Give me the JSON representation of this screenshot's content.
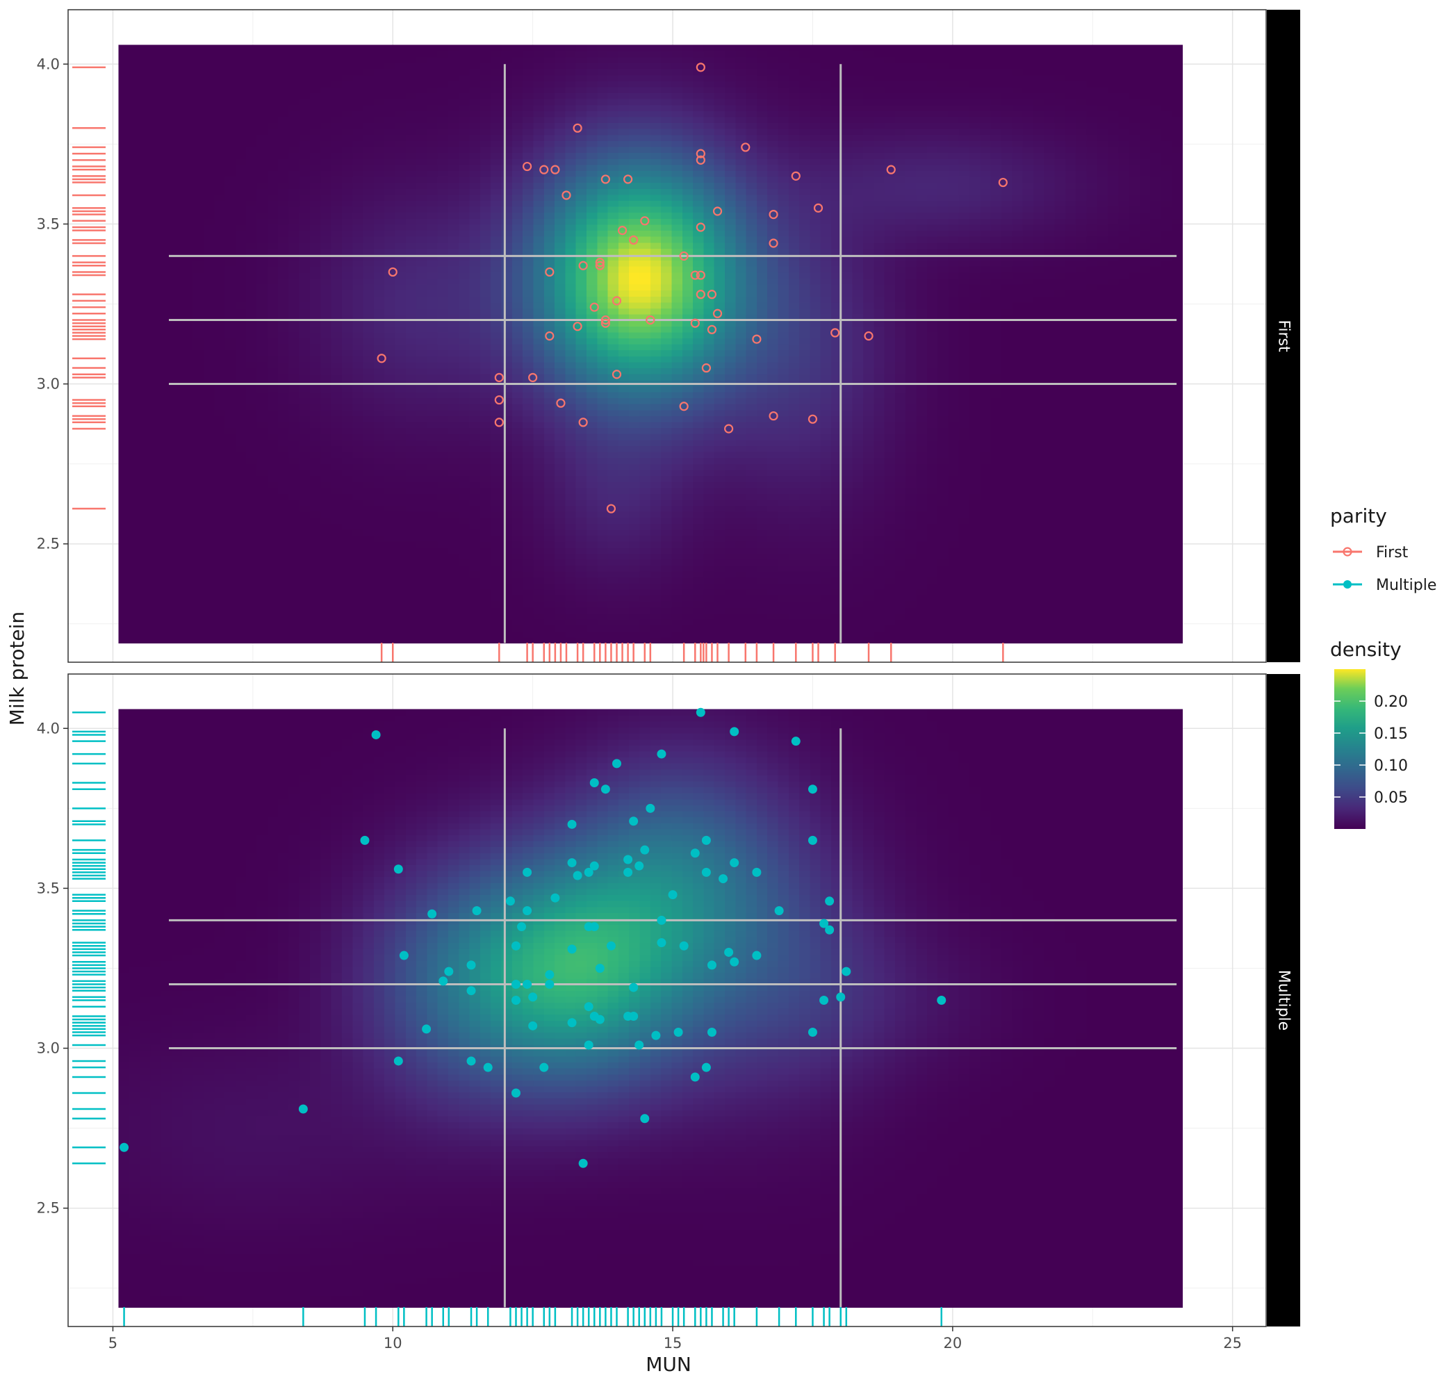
{
  "chart_data": {
    "type": "scatter",
    "subtype": "faceted scatter with 2D density heatmap background, rug marks and reference lines",
    "xlabel": "MUN",
    "ylabel": "Milk protein",
    "xlim": [
      4.2,
      25.6
    ],
    "ylim": [
      2.13,
      4.17
    ],
    "x_ticks": [
      5,
      10,
      15,
      20,
      25
    ],
    "x_tick_labels": [
      "5",
      "10",
      "15",
      "20",
      "25"
    ],
    "y_ticks": [
      2.5,
      3.0,
      3.5,
      4.0
    ],
    "y_tick_labels": [
      "2.5",
      "3.0",
      "3.5",
      "4.0"
    ],
    "density_extent": {
      "x": [
        5.1,
        24.1
      ],
      "y": [
        2.19,
        4.06
      ]
    },
    "reference_lines": {
      "vertical_x": [
        12,
        18
      ],
      "vertical_y_range": [
        2.19,
        4.0
      ],
      "horizontal_y": [
        3.0,
        3.2,
        3.4
      ],
      "horizontal_x_range": [
        6,
        24
      ]
    },
    "grid": true,
    "legends": {
      "parity": {
        "title": "parity",
        "entries": [
          {
            "label": "First",
            "color": "#F8766D",
            "shape": "open circle"
          },
          {
            "label": "Multiple",
            "color": "#00BFC4",
            "shape": "filled circle"
          }
        ]
      },
      "density": {
        "title": "density",
        "colormap": "viridis",
        "range": [
          0,
          0.25
        ],
        "ticks": [
          0.05,
          0.1,
          0.15,
          0.2
        ],
        "tick_labels": [
          "0.05",
          "0.10",
          "0.15",
          "0.20"
        ]
      }
    },
    "facets": [
      {
        "label": "First",
        "color": "#F8766D",
        "shape": "open",
        "density_kernels": [
          {
            "mx": 14.4,
            "my": 3.33,
            "sx": 1.25,
            "sy": 0.25,
            "w": 1.0
          },
          {
            "mx": 10.5,
            "my": 3.25,
            "sx": 1.3,
            "sy": 0.24,
            "w": 0.1
          },
          {
            "mx": 19.8,
            "my": 3.62,
            "sx": 1.7,
            "sy": 0.12,
            "w": 0.09
          },
          {
            "mx": 17.3,
            "my": 3.1,
            "sx": 1.1,
            "sy": 0.3,
            "w": 0.13
          },
          {
            "mx": 14.0,
            "my": 2.65,
            "sx": 0.9,
            "sy": 0.18,
            "w": 0.08
          }
        ],
        "density_max": 0.245,
        "points": [
          [
            15.5,
            3.99
          ],
          [
            13.3,
            3.8
          ],
          [
            15.5,
            3.72
          ],
          [
            15.5,
            3.7
          ],
          [
            16.3,
            3.74
          ],
          [
            12.4,
            3.68
          ],
          [
            12.7,
            3.67
          ],
          [
            12.9,
            3.67
          ],
          [
            13.8,
            3.64
          ],
          [
            14.2,
            3.64
          ],
          [
            17.2,
            3.65
          ],
          [
            18.9,
            3.67
          ],
          [
            20.9,
            3.63
          ],
          [
            13.1,
            3.59
          ],
          [
            15.8,
            3.54
          ],
          [
            17.6,
            3.55
          ],
          [
            16.8,
            3.53
          ],
          [
            14.5,
            3.51
          ],
          [
            15.5,
            3.49
          ],
          [
            14.1,
            3.48
          ],
          [
            14.3,
            3.45
          ],
          [
            16.8,
            3.44
          ],
          [
            15.2,
            3.4
          ],
          [
            13.4,
            3.37
          ],
          [
            13.7,
            3.37
          ],
          [
            13.7,
            3.38
          ],
          [
            12.8,
            3.35
          ],
          [
            15.4,
            3.34
          ],
          [
            15.5,
            3.34
          ],
          [
            10.0,
            3.35
          ],
          [
            15.5,
            3.28
          ],
          [
            15.7,
            3.28
          ],
          [
            14.0,
            3.26
          ],
          [
            13.6,
            3.24
          ],
          [
            15.8,
            3.22
          ],
          [
            13.8,
            3.2
          ],
          [
            13.8,
            3.19
          ],
          [
            14.6,
            3.2
          ],
          [
            15.4,
            3.19
          ],
          [
            13.3,
            3.18
          ],
          [
            15.7,
            3.17
          ],
          [
            12.8,
            3.15
          ],
          [
            16.5,
            3.14
          ],
          [
            17.9,
            3.16
          ],
          [
            18.5,
            3.15
          ],
          [
            9.8,
            3.08
          ],
          [
            15.6,
            3.05
          ],
          [
            14.0,
            3.03
          ],
          [
            11.9,
            3.02
          ],
          [
            12.5,
            3.02
          ],
          [
            11.9,
            2.95
          ],
          [
            13.0,
            2.94
          ],
          [
            15.2,
            2.93
          ],
          [
            16.8,
            2.9
          ],
          [
            17.5,
            2.89
          ],
          [
            11.9,
            2.88
          ],
          [
            13.4,
            2.88
          ],
          [
            16.0,
            2.86
          ],
          [
            13.9,
            2.61
          ]
        ],
        "rug_x": [
          9.8,
          10.0,
          11.9,
          12.4,
          12.5,
          12.7,
          12.8,
          12.9,
          13.0,
          13.1,
          13.3,
          13.4,
          13.6,
          13.7,
          13.8,
          13.9,
          14.0,
          14.1,
          14.2,
          14.3,
          14.5,
          14.6,
          15.2,
          15.4,
          15.5,
          15.55,
          15.6,
          15.7,
          15.8,
          16.0,
          16.3,
          16.5,
          16.8,
          17.2,
          17.5,
          17.6,
          17.9,
          18.5,
          18.9,
          20.9
        ],
        "rug_y": [
          2.61,
          2.86,
          2.88,
          2.89,
          2.9,
          2.93,
          2.94,
          2.95,
          3.02,
          3.03,
          3.05,
          3.08,
          3.14,
          3.15,
          3.16,
          3.17,
          3.18,
          3.19,
          3.2,
          3.22,
          3.24,
          3.26,
          3.28,
          3.34,
          3.35,
          3.37,
          3.38,
          3.4,
          3.44,
          3.45,
          3.48,
          3.49,
          3.51,
          3.53,
          3.54,
          3.55,
          3.59,
          3.63,
          3.64,
          3.65,
          3.67,
          3.68,
          3.7,
          3.72,
          3.74,
          3.8,
          3.99
        ]
      },
      {
        "label": "Multiple",
        "color": "#00BFC4",
        "shape": "filled",
        "density_kernels": [
          {
            "mx": 13.2,
            "my": 3.24,
            "sx": 1.45,
            "sy": 0.24,
            "w": 1.0
          },
          {
            "mx": 15.0,
            "my": 3.55,
            "sx": 1.3,
            "sy": 0.24,
            "w": 0.45
          },
          {
            "mx": 11.0,
            "my": 3.2,
            "sx": 1.2,
            "sy": 0.25,
            "w": 0.3
          },
          {
            "mx": 16.5,
            "my": 3.3,
            "sx": 1.4,
            "sy": 0.3,
            "w": 0.25
          },
          {
            "mx": 17.8,
            "my": 3.15,
            "sx": 1.0,
            "sy": 0.18,
            "w": 0.08
          },
          {
            "mx": 7.5,
            "my": 2.75,
            "sx": 2.0,
            "sy": 0.2,
            "w": 0.05
          },
          {
            "mx": 19.5,
            "my": 3.15,
            "sx": 1.1,
            "sy": 0.15,
            "w": 0.04
          }
        ],
        "density_max": 0.245,
        "density_peak": 0.19,
        "points": [
          [
            15.5,
            4.05
          ],
          [
            16.1,
            3.99
          ],
          [
            9.7,
            3.98
          ],
          [
            17.2,
            3.96
          ],
          [
            14.8,
            3.92
          ],
          [
            14.0,
            3.89
          ],
          [
            13.6,
            3.83
          ],
          [
            13.8,
            3.81
          ],
          [
            17.5,
            3.81
          ],
          [
            14.6,
            3.75
          ],
          [
            14.3,
            3.71
          ],
          [
            13.2,
            3.7
          ],
          [
            9.5,
            3.65
          ],
          [
            15.6,
            3.65
          ],
          [
            17.5,
            3.65
          ],
          [
            14.5,
            3.62
          ],
          [
            15.4,
            3.61
          ],
          [
            13.2,
            3.58
          ],
          [
            14.2,
            3.59
          ],
          [
            16.1,
            3.58
          ],
          [
            14.4,
            3.57
          ],
          [
            13.6,
            3.57
          ],
          [
            13.5,
            3.55
          ],
          [
            10.1,
            3.56
          ],
          [
            12.4,
            3.55
          ],
          [
            14.2,
            3.55
          ],
          [
            15.6,
            3.55
          ],
          [
            16.5,
            3.55
          ],
          [
            13.3,
            3.54
          ],
          [
            15.9,
            3.53
          ],
          [
            15.0,
            3.48
          ],
          [
            12.9,
            3.47
          ],
          [
            12.1,
            3.46
          ],
          [
            17.8,
            3.46
          ],
          [
            10.7,
            3.42
          ],
          [
            11.5,
            3.43
          ],
          [
            12.4,
            3.43
          ],
          [
            16.9,
            3.43
          ],
          [
            14.8,
            3.4
          ],
          [
            17.7,
            3.39
          ],
          [
            13.5,
            3.38
          ],
          [
            13.6,
            3.38
          ],
          [
            12.3,
            3.38
          ],
          [
            17.8,
            3.37
          ],
          [
            14.8,
            3.33
          ],
          [
            15.2,
            3.32
          ],
          [
            13.9,
            3.32
          ],
          [
            12.2,
            3.32
          ],
          [
            13.2,
            3.31
          ],
          [
            16.0,
            3.3
          ],
          [
            10.2,
            3.29
          ],
          [
            16.5,
            3.29
          ],
          [
            16.1,
            3.27
          ],
          [
            11.4,
            3.26
          ],
          [
            15.7,
            3.26
          ],
          [
            13.7,
            3.25
          ],
          [
            11.0,
            3.24
          ],
          [
            18.1,
            3.24
          ],
          [
            12.8,
            3.23
          ],
          [
            10.9,
            3.21
          ],
          [
            12.2,
            3.2
          ],
          [
            12.4,
            3.2
          ],
          [
            12.8,
            3.2
          ],
          [
            14.3,
            3.19
          ],
          [
            11.4,
            3.18
          ],
          [
            12.5,
            3.16
          ],
          [
            12.2,
            3.15
          ],
          [
            17.7,
            3.15
          ],
          [
            18.0,
            3.16
          ],
          [
            19.8,
            3.15
          ],
          [
            13.5,
            3.13
          ],
          [
            13.6,
            3.1
          ],
          [
            13.7,
            3.09
          ],
          [
            14.2,
            3.1
          ],
          [
            14.3,
            3.1
          ],
          [
            13.2,
            3.08
          ],
          [
            12.5,
            3.07
          ],
          [
            10.6,
            3.06
          ],
          [
            15.1,
            3.05
          ],
          [
            15.7,
            3.05
          ],
          [
            17.5,
            3.05
          ],
          [
            14.7,
            3.04
          ],
          [
            13.5,
            3.01
          ],
          [
            14.4,
            3.01
          ],
          [
            10.1,
            2.96
          ],
          [
            11.4,
            2.96
          ],
          [
            11.7,
            2.94
          ],
          [
            12.7,
            2.94
          ],
          [
            15.6,
            2.94
          ],
          [
            15.4,
            2.91
          ],
          [
            12.2,
            2.86
          ],
          [
            8.4,
            2.81
          ],
          [
            14.5,
            2.78
          ],
          [
            5.2,
            2.69
          ],
          [
            13.4,
            2.64
          ]
        ],
        "rug_x": [
          5.2,
          8.4,
          9.5,
          9.7,
          10.1,
          10.2,
          10.6,
          10.7,
          10.9,
          11.0,
          11.4,
          11.5,
          11.7,
          12.1,
          12.2,
          12.3,
          12.4,
          12.5,
          12.7,
          12.8,
          12.9,
          13.2,
          13.3,
          13.4,
          13.5,
          13.6,
          13.7,
          13.8,
          13.9,
          14.0,
          14.2,
          14.3,
          14.4,
          14.5,
          14.6,
          14.7,
          14.8,
          15.0,
          15.1,
          15.2,
          15.4,
          15.5,
          15.6,
          15.7,
          15.9,
          16.0,
          16.1,
          16.5,
          16.9,
          17.2,
          17.5,
          17.7,
          17.8,
          18.0,
          18.1,
          19.8
        ],
        "rug_y": [
          2.64,
          2.69,
          2.78,
          2.81,
          2.86,
          2.91,
          2.94,
          2.96,
          3.01,
          3.04,
          3.05,
          3.06,
          3.07,
          3.08,
          3.09,
          3.1,
          3.13,
          3.15,
          3.16,
          3.18,
          3.19,
          3.2,
          3.21,
          3.23,
          3.24,
          3.25,
          3.26,
          3.27,
          3.29,
          3.3,
          3.31,
          3.32,
          3.33,
          3.37,
          3.38,
          3.39,
          3.4,
          3.42,
          3.43,
          3.46,
          3.47,
          3.48,
          3.53,
          3.54,
          3.55,
          3.56,
          3.57,
          3.58,
          3.59,
          3.61,
          3.62,
          3.65,
          3.7,
          3.71,
          3.75,
          3.81,
          3.83,
          3.89,
          3.92,
          3.96,
          3.98,
          3.99,
          4.05
        ]
      }
    ]
  }
}
